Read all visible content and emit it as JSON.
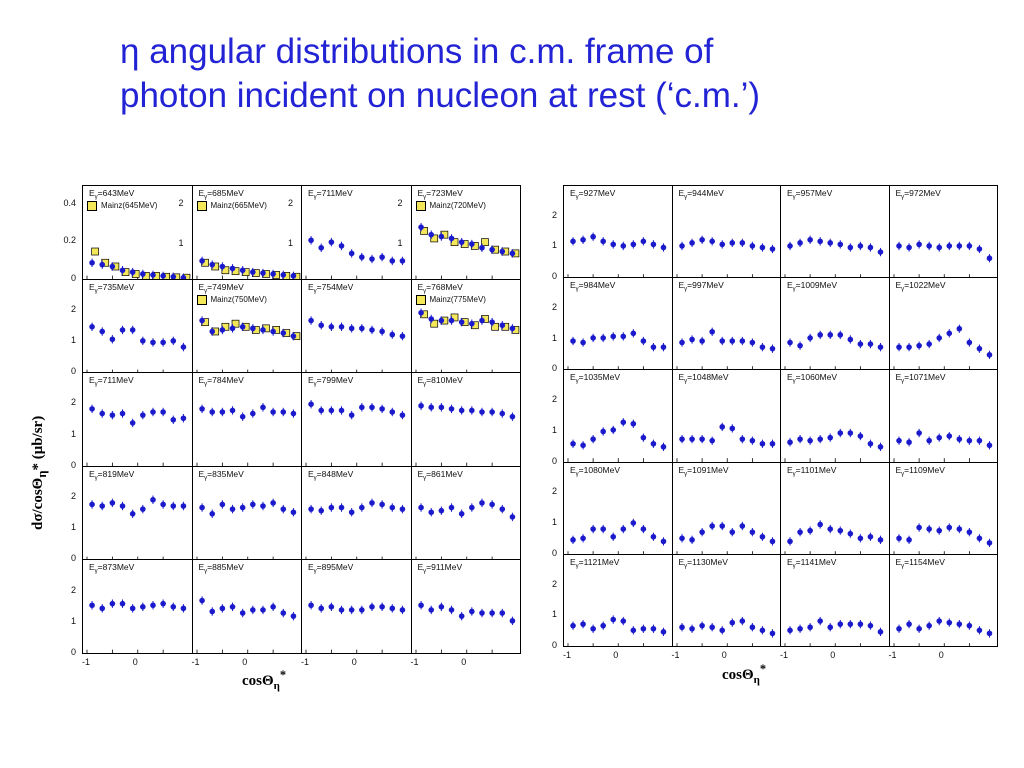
{
  "title": {
    "line1": "η angular distributions in c.m. frame of",
    "line2": "photon incident on nucleon at rest (‘c.m.’)"
  },
  "colors": {
    "title": "#2323d6",
    "data": "#1a1acc",
    "mainz": "#f4e85a"
  },
  "chart_data": [
    {
      "type": "scatter",
      "name": "left-grid",
      "xlabel": "cosΘ",
      "xlabel_sub": "η",
      "xlabel_sup": "*",
      "ylabel": "dσ/cosΘ",
      "ylabel_sub": "η",
      "ylabel_tail": "* (μb/sr)",
      "xlim": [
        -1,
        1
      ],
      "x_ticks": [
        "-1",
        "0",
        "-1",
        "0",
        "-1",
        "0",
        "-1",
        "0"
      ],
      "x": [
        -0.9,
        -0.7,
        -0.5,
        -0.3,
        -0.1,
        0.1,
        0.3,
        0.5,
        0.7,
        0.9
      ],
      "row_ylim": [
        [
          0,
          0.5
        ],
        [
          0,
          3
        ],
        [
          0,
          3
        ],
        [
          0,
          3
        ],
        [
          0,
          3
        ]
      ],
      "row_yticks": [
        [
          "0",
          "0.2",
          "0.4"
        ],
        [
          "0",
          "1",
          "2"
        ],
        [
          "0",
          "1",
          "2"
        ],
        [
          "0",
          "1",
          "2"
        ],
        [
          "0",
          "1",
          "2"
        ]
      ],
      "panels": [
        {
          "label": "=643MeV",
          "mainz_label": "Mainz(645MeV)",
          "side_ticks": [
            "2",
            "1"
          ],
          "values": [
            0.09,
            0.08,
            0.07,
            0.05,
            0.04,
            0.03,
            0.025,
            0.02,
            0.015,
            0.01
          ],
          "mainz": [
            0.15,
            0.09,
            0.07,
            0.04,
            0.03,
            0.02,
            0.02,
            0.015,
            0.012,
            0.01
          ]
        },
        {
          "label": "=685MeV",
          "mainz_label": "Mainz(665MeV)",
          "side_ticks": [
            "2",
            "1"
          ],
          "values": [
            0.1,
            0.08,
            0.07,
            0.06,
            0.05,
            0.04,
            0.035,
            0.03,
            0.025,
            0.02
          ],
          "mainz": [
            0.09,
            0.07,
            0.05,
            0.045,
            0.04,
            0.035,
            0.03,
            0.025,
            0.02,
            0.015
          ]
        },
        {
          "label": "=711MeV",
          "side_ticks": [
            "2",
            "1"
          ],
          "values": [
            0.21,
            0.17,
            0.2,
            0.18,
            0.14,
            0.12,
            0.11,
            0.12,
            0.1,
            0.1
          ]
        },
        {
          "label": "=723MeV",
          "mainz_label": "Mainz(720MeV)",
          "values": [
            0.28,
            0.24,
            0.23,
            0.22,
            0.2,
            0.19,
            0.17,
            0.16,
            0.15,
            0.14
          ],
          "mainz": [
            0.26,
            0.22,
            0.24,
            0.2,
            0.19,
            0.18,
            0.2,
            0.16,
            0.15,
            0.14
          ]
        },
        {
          "label": "=735MeV",
          "values": [
            1.5,
            1.35,
            1.1,
            1.4,
            1.4,
            1.05,
            1.0,
            1.0,
            1.05,
            0.85
          ]
        },
        {
          "label": "=749MeV",
          "mainz_label": "Mainz(750MeV)",
          "values": [
            1.7,
            1.35,
            1.4,
            1.45,
            1.5,
            1.45,
            1.4,
            1.35,
            1.3,
            1.2
          ],
          "mainz": [
            1.65,
            1.35,
            1.5,
            1.6,
            1.5,
            1.4,
            1.45,
            1.4,
            1.3,
            1.2
          ]
        },
        {
          "label": "=754MeV",
          "values": [
            1.7,
            1.55,
            1.5,
            1.5,
            1.45,
            1.45,
            1.4,
            1.35,
            1.25,
            1.2
          ]
        },
        {
          "label": "=768MeV",
          "mainz_label": "Mainz(775MeV)",
          "values": [
            1.95,
            1.75,
            1.7,
            1.7,
            1.65,
            1.6,
            1.7,
            1.65,
            1.55,
            1.45
          ],
          "mainz": [
            1.9,
            1.6,
            1.7,
            1.8,
            1.65,
            1.55,
            1.75,
            1.5,
            1.5,
            1.4
          ]
        },
        {
          "label": "=711MeV",
          "values": [
            1.85,
            1.7,
            1.65,
            1.7,
            1.4,
            1.65,
            1.75,
            1.75,
            1.5,
            1.55
          ]
        },
        {
          "label": "=784MeV",
          "values": [
            1.85,
            1.75,
            1.75,
            1.8,
            1.6,
            1.7,
            1.9,
            1.75,
            1.75,
            1.7
          ]
        },
        {
          "label": "=799MeV",
          "values": [
            2.0,
            1.8,
            1.8,
            1.8,
            1.65,
            1.9,
            1.9,
            1.85,
            1.75,
            1.65
          ]
        },
        {
          "label": "=810MeV",
          "values": [
            1.95,
            1.9,
            1.9,
            1.85,
            1.8,
            1.8,
            1.75,
            1.75,
            1.7,
            1.6
          ]
        },
        {
          "label": "=819MeV",
          "values": [
            1.8,
            1.75,
            1.85,
            1.75,
            1.5,
            1.65,
            1.95,
            1.8,
            1.75,
            1.75
          ]
        },
        {
          "label": "=835MeV",
          "values": [
            1.7,
            1.5,
            1.8,
            1.65,
            1.7,
            1.8,
            1.75,
            1.85,
            1.65,
            1.55
          ]
        },
        {
          "label": "=848MeV",
          "values": [
            1.65,
            1.6,
            1.7,
            1.7,
            1.55,
            1.7,
            1.85,
            1.8,
            1.7,
            1.65
          ]
        },
        {
          "label": "=861MeV",
          "values": [
            1.7,
            1.55,
            1.6,
            1.7,
            1.5,
            1.7,
            1.85,
            1.8,
            1.65,
            1.4
          ]
        },
        {
          "label": "=873MeV",
          "values": [
            1.55,
            1.45,
            1.6,
            1.6,
            1.45,
            1.5,
            1.55,
            1.6,
            1.5,
            1.45
          ]
        },
        {
          "label": "=885MeV",
          "values": [
            1.7,
            1.35,
            1.45,
            1.5,
            1.3,
            1.4,
            1.4,
            1.5,
            1.3,
            1.2
          ]
        },
        {
          "label": "=895MeV",
          "values": [
            1.55,
            1.45,
            1.5,
            1.4,
            1.4,
            1.4,
            1.5,
            1.5,
            1.45,
            1.4
          ]
        },
        {
          "label": "=911MeV",
          "values": [
            1.55,
            1.4,
            1.5,
            1.4,
            1.2,
            1.35,
            1.3,
            1.3,
            1.3,
            1.05
          ]
        }
      ]
    },
    {
      "type": "scatter",
      "name": "right-grid",
      "xlabel": "cosΘ",
      "xlabel_sub": "η",
      "xlabel_sup": "*",
      "xlim": [
        -1,
        1
      ],
      "x_ticks": [
        "-1",
        "0",
        "-1",
        "0",
        "-1",
        "0",
        "-1",
        "0"
      ],
      "x": [
        -0.9,
        -0.7,
        -0.5,
        -0.3,
        -0.1,
        0.1,
        0.3,
        0.5,
        0.7,
        0.9
      ],
      "row_ylim": [
        [
          0,
          3
        ],
        [
          0,
          3
        ],
        [
          0,
          3
        ],
        [
          0,
          3
        ],
        [
          0,
          3
        ]
      ],
      "row_yticks": [
        [
          "0",
          "1",
          "2"
        ],
        [
          "0",
          "1",
          "2"
        ],
        [
          "0",
          "1",
          "2"
        ],
        [
          "0",
          "1",
          "2"
        ],
        [
          "0",
          "1",
          "2"
        ]
      ],
      "panels": [
        {
          "label": "=927MeV",
          "values": [
            1.2,
            1.25,
            1.35,
            1.2,
            1.1,
            1.05,
            1.1,
            1.2,
            1.1,
            1.0
          ]
        },
        {
          "label": "=944MeV",
          "values": [
            1.05,
            1.15,
            1.25,
            1.2,
            1.1,
            1.15,
            1.15,
            1.05,
            1.0,
            0.95
          ]
        },
        {
          "label": "=957MeV",
          "values": [
            1.05,
            1.15,
            1.25,
            1.2,
            1.15,
            1.1,
            1.0,
            1.05,
            1.0,
            0.85
          ]
        },
        {
          "label": "=972MeV",
          "values": [
            1.05,
            1.0,
            1.1,
            1.05,
            1.0,
            1.05,
            1.05,
            1.05,
            0.95,
            0.65
          ]
        },
        {
          "label": "=984MeV",
          "values": [
            0.95,
            0.9,
            1.05,
            1.05,
            1.1,
            1.1,
            1.2,
            0.95,
            0.75,
            0.75
          ]
        },
        {
          "label": "=997MeV",
          "values": [
            0.9,
            1.0,
            0.95,
            1.25,
            0.95,
            0.95,
            0.95,
            0.9,
            0.75,
            0.7
          ]
        },
        {
          "label": "=1009MeV",
          "values": [
            0.9,
            0.8,
            1.05,
            1.15,
            1.15,
            1.15,
            1.0,
            0.85,
            0.85,
            0.75
          ]
        },
        {
          "label": "=1022MeV",
          "values": [
            0.75,
            0.75,
            0.8,
            0.85,
            1.05,
            1.2,
            1.35,
            0.9,
            0.7,
            0.5
          ]
        },
        {
          "label": "=1035MeV",
          "values": [
            0.6,
            0.55,
            0.75,
            1.0,
            1.05,
            1.3,
            1.25,
            0.8,
            0.6,
            0.5
          ]
        },
        {
          "label": "=1048MeV",
          "values": [
            0.75,
            0.75,
            0.75,
            0.7,
            1.15,
            1.1,
            0.75,
            0.7,
            0.6,
            0.6
          ]
        },
        {
          "label": "=1060MeV",
          "values": [
            0.65,
            0.75,
            0.7,
            0.75,
            0.8,
            0.95,
            0.95,
            0.85,
            0.6,
            0.5
          ]
        },
        {
          "label": "=1071MeV",
          "values": [
            0.7,
            0.65,
            0.95,
            0.7,
            0.8,
            0.85,
            0.75,
            0.7,
            0.7,
            0.55
          ]
        },
        {
          "label": "=1080MeV",
          "values": [
            0.5,
            0.55,
            0.85,
            0.85,
            0.6,
            0.85,
            1.05,
            0.85,
            0.6,
            0.45
          ]
        },
        {
          "label": "=1091MeV",
          "values": [
            0.55,
            0.5,
            0.75,
            0.95,
            0.95,
            0.75,
            0.95,
            0.75,
            0.6,
            0.45
          ]
        },
        {
          "label": "=1101MeV",
          "values": [
            0.45,
            0.75,
            0.8,
            1.0,
            0.85,
            0.8,
            0.7,
            0.55,
            0.6,
            0.5
          ]
        },
        {
          "label": "=1109MeV",
          "values": [
            0.55,
            0.5,
            0.9,
            0.85,
            0.8,
            0.9,
            0.85,
            0.75,
            0.55,
            0.4
          ]
        },
        {
          "label": "=1121MeV",
          "values": [
            0.7,
            0.75,
            0.6,
            0.7,
            0.9,
            0.85,
            0.55,
            0.6,
            0.6,
            0.5
          ]
        },
        {
          "label": "=1130MeV",
          "values": [
            0.65,
            0.6,
            0.7,
            0.65,
            0.55,
            0.8,
            0.85,
            0.65,
            0.55,
            0.45
          ]
        },
        {
          "label": "=1141MeV",
          "values": [
            0.55,
            0.6,
            0.65,
            0.85,
            0.65,
            0.75,
            0.75,
            0.75,
            0.7,
            0.5
          ]
        },
        {
          "label": "=1154MeV",
          "values": [
            0.6,
            0.75,
            0.6,
            0.7,
            0.85,
            0.8,
            0.75,
            0.7,
            0.55,
            0.45
          ]
        }
      ]
    }
  ]
}
